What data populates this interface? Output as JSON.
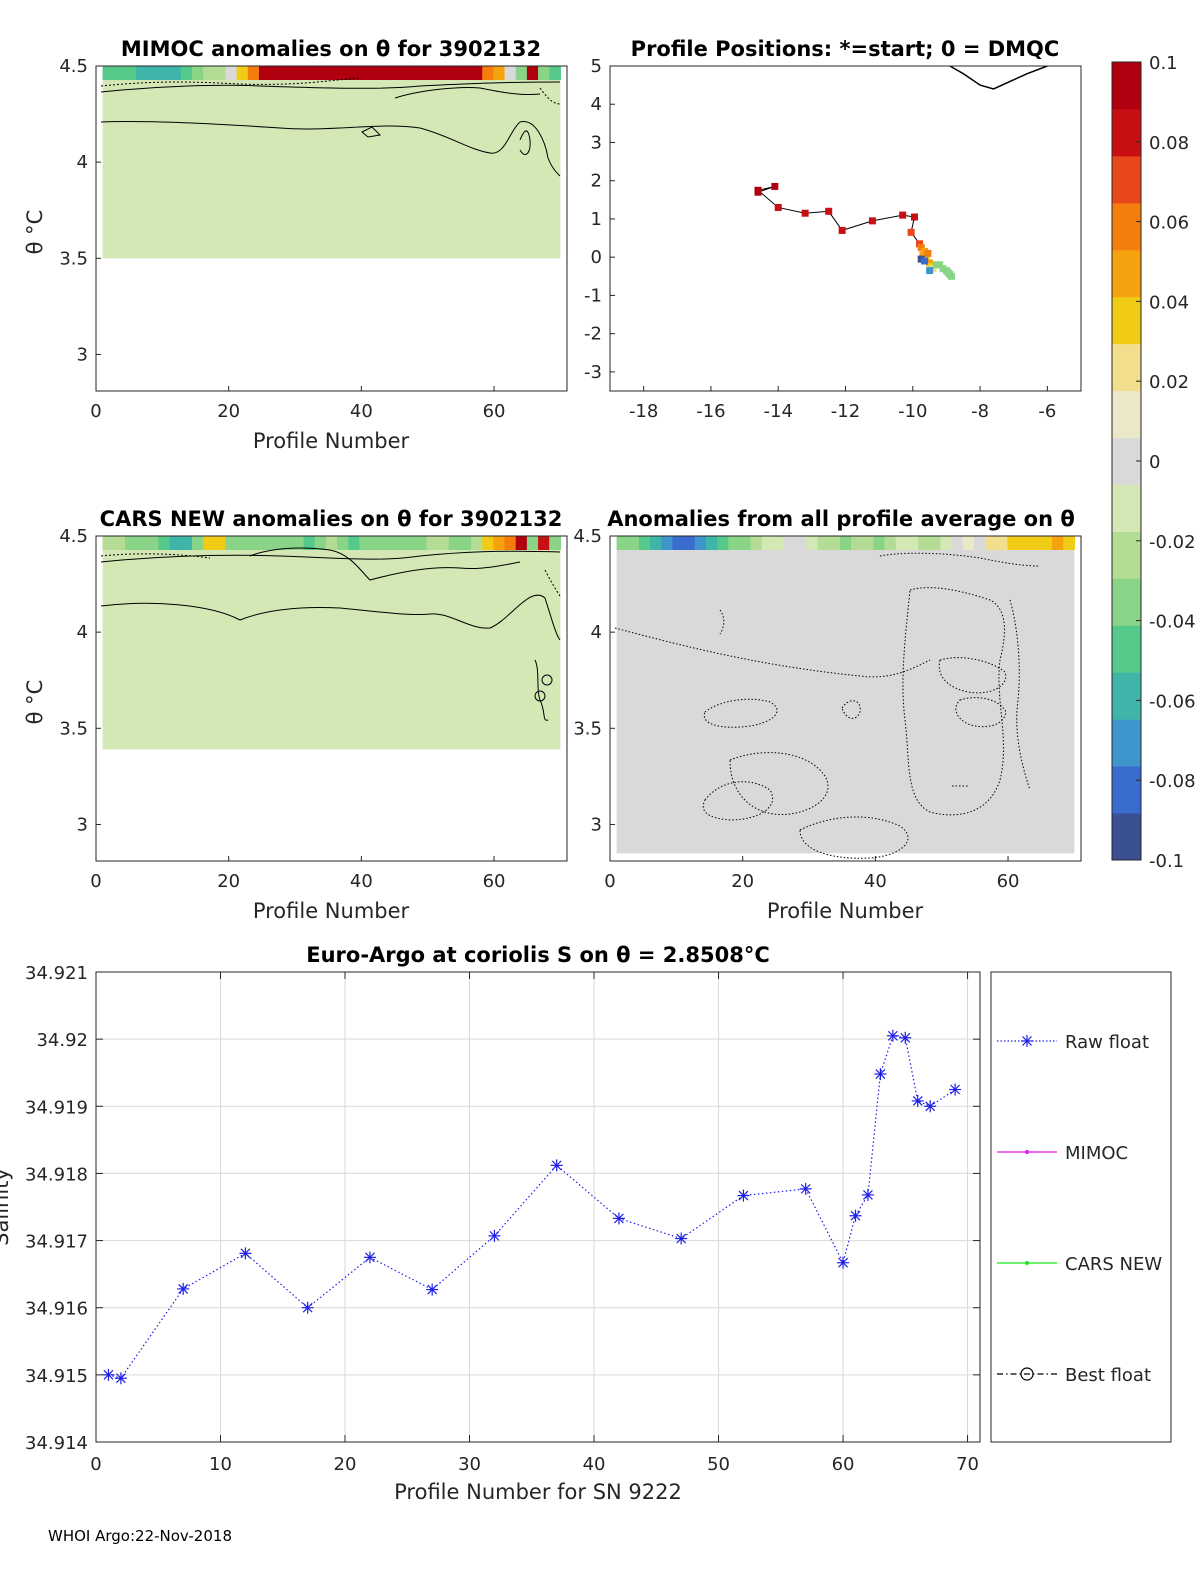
{
  "footer": "WHOI Argo:22-Nov-2018",
  "colors": {
    "colormap": [
      "#3b4f93",
      "#3a6ccf",
      "#3d95cc",
      "#3fb4a9",
      "#55c98a",
      "#8ad488",
      "#b4dc95",
      "#d3e8b4",
      "#d9d9d9",
      "#ebe8c8",
      "#f2de8c",
      "#f0cc17",
      "#f6a20e",
      "#f57d0d",
      "#e8461b",
      "#c80f14",
      "#b0000f"
    ],
    "anomaly_fill": "#d6e9b4",
    "grey_fill": "#d9d9d9",
    "raw_float": "#1f1fe6",
    "mimoc": "#e619e6",
    "cars_new": "#19e619",
    "best_float": "#000000"
  },
  "chart_data": [
    {
      "id": "mimoc",
      "type": "heatmap",
      "title": "MIMOC anomalies on θ  for 3902132",
      "xlabel": "Profile Number",
      "ylabel": "θ °C",
      "xlim": [
        0,
        71
      ],
      "ylim": [
        2.81,
        4.5
      ],
      "xticks": [
        "0",
        "20",
        "40",
        "60"
      ],
      "yticks": [
        "3",
        "3.5",
        "4",
        "4.5"
      ],
      "xtick_values": [
        0,
        20,
        40,
        60
      ],
      "ytick_values": [
        3,
        3.5,
        4,
        4.5
      ],
      "data_range": {
        "theta_min": 3.5,
        "theta_max": 4.5,
        "profile_min": 1,
        "profile_max": 70
      },
      "dominant_anomaly": -0.01,
      "top_band": [
        -0.05,
        -0.05,
        -0.05,
        -0.06,
        -0.06,
        -0.06,
        -0.06,
        -0.05,
        -0.03,
        -0.02,
        -0.02,
        0.0,
        0.04,
        0.06,
        0.1,
        0.1,
        0.1,
        0.1,
        0.1,
        0.1,
        0.1,
        0.1,
        0.1,
        0.1,
        0.1,
        0.1,
        0.1,
        0.1,
        0.1,
        0.1,
        0.1,
        0.1,
        0.1,
        0.1,
        0.06,
        0.05,
        0.0,
        -0.03,
        0.1,
        -0.04,
        -0.05
      ]
    },
    {
      "id": "positions",
      "type": "scatter",
      "title": "Profile Positions: *=start; 0 = DMQC",
      "xlim": [
        -19,
        -5
      ],
      "ylim": [
        -3.5,
        5
      ],
      "xticks": [
        "-18",
        "-16",
        "-14",
        "-12",
        "-10",
        "-8",
        "-6"
      ],
      "yticks": [
        "-3",
        "-2",
        "-1",
        "0",
        "1",
        "2",
        "3",
        "4",
        "5"
      ],
      "xtick_values": [
        -18,
        -16,
        -14,
        -12,
        -10,
        -8,
        -6
      ],
      "ytick_values": [
        -3,
        -2,
        -1,
        0,
        1,
        2,
        3,
        4,
        5
      ],
      "track": {
        "lon": [
          -14.6,
          -14.1,
          -14.6,
          -14.0,
          -13.2,
          -12.5,
          -12.1,
          -11.2,
          -10.3,
          -9.95,
          -10.05,
          -9.8,
          -9.75,
          -9.65,
          -9.6
        ],
        "lat": [
          1.7,
          1.85,
          1.75,
          1.3,
          1.15,
          1.2,
          0.7,
          0.95,
          1.1,
          1.05,
          0.65,
          0.35,
          0.25,
          0.15,
          0.05
        ],
        "anom": [
          0.1,
          0.1,
          0.09,
          0.08,
          0.08,
          0.08,
          0.08,
          0.08,
          0.08,
          0.08,
          0.07,
          0.07,
          0.06,
          0.05,
          0.05
        ]
      },
      "cluster": {
        "lon": [
          -9.7,
          -9.6,
          -9.55,
          -9.5,
          -9.45,
          -9.4,
          -9.3,
          -9.2,
          -9.1,
          -9.0,
          -8.95,
          -8.9,
          -8.85,
          -9.75,
          -9.65,
          -9.5
        ],
        "lat": [
          0.05,
          -0.05,
          0.1,
          -0.15,
          -0.25,
          -0.3,
          -0.2,
          -0.2,
          -0.3,
          -0.35,
          -0.4,
          -0.45,
          -0.5,
          -0.05,
          -0.1,
          -0.35
        ],
        "anom": [
          0.05,
          0.04,
          0.06,
          0.05,
          0.03,
          0.02,
          -0.03,
          -0.04,
          -0.04,
          -0.04,
          -0.03,
          -0.03,
          -0.03,
          -0.09,
          -0.08,
          -0.07
        ]
      },
      "coast": {
        "lon": [
          -8.9,
          -8.5,
          -8.0,
          -7.6,
          -7.1,
          -6.6,
          -6.0
        ],
        "lat": [
          5.0,
          4.8,
          4.5,
          4.4,
          4.6,
          4.8,
          5.0
        ]
      }
    },
    {
      "id": "colorbar",
      "type": "heatmap",
      "range": [
        -0.1,
        0.1
      ],
      "ticks": [
        "0.1",
        "0.08",
        "0.06",
        "0.04",
        "0.02",
        "0",
        "-0.02",
        "-0.04",
        "-0.06",
        "-0.08",
        "-0.1"
      ],
      "tick_values": [
        0.1,
        0.08,
        0.06,
        0.04,
        0.02,
        0,
        -0.02,
        -0.04,
        -0.06,
        -0.08,
        -0.1
      ]
    },
    {
      "id": "cars",
      "type": "heatmap",
      "title": "CARS NEW anomalies on θ for 3902132",
      "xlabel": "Profile Number",
      "ylabel": "θ °C",
      "xlim": [
        0,
        71
      ],
      "ylim": [
        2.81,
        4.5
      ],
      "xticks": [
        "0",
        "20",
        "40",
        "60"
      ],
      "yticks": [
        "3",
        "3.5",
        "4",
        "4.5"
      ],
      "xtick_values": [
        0,
        20,
        40,
        60
      ],
      "ytick_values": [
        3,
        3.5,
        4,
        4.5
      ],
      "data_range": {
        "theta_min": 3.39,
        "theta_max": 4.5,
        "profile_min": 1,
        "profile_max": 70
      },
      "dominant_anomaly": -0.01,
      "top_band": [
        -0.02,
        -0.02,
        -0.03,
        -0.04,
        -0.04,
        -0.05,
        -0.06,
        -0.06,
        -0.03,
        0.03,
        0.04,
        -0.03,
        -0.04,
        -0.04,
        -0.04,
        -0.03,
        -0.04,
        -0.04,
        -0.05,
        -0.03,
        -0.02,
        -0.04,
        -0.05,
        -0.04,
        -0.04,
        -0.03,
        -0.03,
        -0.03,
        -0.03,
        -0.02,
        -0.02,
        -0.03,
        -0.04,
        -0.02,
        0.04,
        0.05,
        0.06,
        0.1,
        -0.04,
        0.08,
        -0.03
      ]
    },
    {
      "id": "allavg",
      "type": "heatmap",
      "title": "Anomalies from all profile average on θ",
      "xlabel": "Profile Number",
      "xlim": [
        0,
        71
      ],
      "ylim": [
        2.81,
        4.5
      ],
      "xticks": [
        "0",
        "20",
        "40",
        "60"
      ],
      "yticks": [
        "3",
        "3.5",
        "4",
        "4.5"
      ],
      "xtick_values": [
        0,
        20,
        40,
        60
      ],
      "ytick_values": [
        3,
        3.5,
        4,
        4.5
      ],
      "data_range": {
        "theta_min": 2.85,
        "theta_max": 4.5,
        "profile_min": 1,
        "profile_max": 70
      },
      "dominant_anomaly": 0.0,
      "top_band": [
        -0.03,
        -0.04,
        -0.05,
        -0.06,
        -0.07,
        -0.08,
        -0.08,
        -0.07,
        -0.06,
        -0.05,
        -0.04,
        -0.03,
        -0.02,
        -0.01,
        -0.01,
        0.0,
        0.0,
        -0.01,
        -0.02,
        -0.02,
        -0.03,
        -0.02,
        -0.02,
        -0.03,
        -0.02,
        -0.01,
        -0.01,
        -0.02,
        -0.02,
        -0.01,
        0.0,
        0.01,
        0.0,
        0.02,
        0.02,
        0.03,
        0.04,
        0.04,
        0.04,
        0.05,
        0.04
      ]
    },
    {
      "id": "salinity",
      "type": "line",
      "title": "Euro-Argo at coriolis S on θ = 2.8508°C",
      "xlabel": "Profile Number for SN 9222",
      "ylabel": "Salinity",
      "xlim": [
        0,
        71
      ],
      "ylim": [
        34.914,
        34.921
      ],
      "xticks": [
        "0",
        "10",
        "20",
        "30",
        "40",
        "50",
        "60",
        "70"
      ],
      "yticks": [
        "34.914",
        "34.915",
        "34.916",
        "34.917",
        "34.918",
        "34.919",
        "34.92",
        "34.921"
      ],
      "xtick_values": [
        0,
        10,
        20,
        30,
        40,
        50,
        60,
        70
      ],
      "ytick_values": [
        34.914,
        34.915,
        34.916,
        34.917,
        34.918,
        34.919,
        34.92,
        34.921
      ],
      "grid": true,
      "legend": [
        "Raw float",
        "MIMOC",
        "CARS NEW",
        "Best float"
      ],
      "series": [
        {
          "name": "Raw float",
          "x": [
            1,
            2,
            7,
            12,
            17,
            22,
            27,
            32,
            37,
            42,
            47,
            52,
            57,
            60,
            61,
            62,
            63,
            64,
            65,
            66,
            67,
            69
          ],
          "y": [
            34.915,
            34.91495,
            34.91628,
            34.91681,
            34.916,
            34.91675,
            34.91627,
            34.91707,
            34.91812,
            34.91733,
            34.91703,
            34.91767,
            34.91777,
            34.91667,
            34.91737,
            34.91768,
            34.91948,
            34.92005,
            34.92002,
            34.91908,
            34.919,
            34.91925
          ]
        },
        {
          "name": "MIMOC",
          "x": [],
          "y": []
        },
        {
          "name": "CARS NEW",
          "x": [],
          "y": []
        },
        {
          "name": "Best float",
          "x": [],
          "y": []
        }
      ]
    }
  ]
}
